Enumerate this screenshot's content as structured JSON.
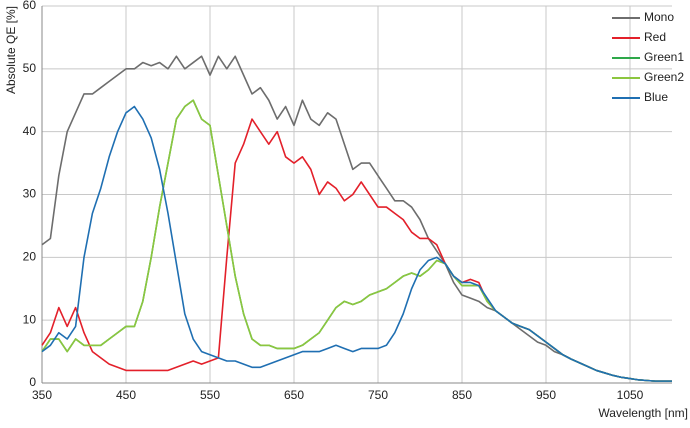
{
  "chart_data": {
    "type": "line",
    "x_label": "Wavelength [nm]",
    "y_label": "Absolute QE [%]",
    "x": [
      350,
      360,
      370,
      380,
      390,
      400,
      410,
      420,
      430,
      440,
      450,
      460,
      470,
      480,
      490,
      500,
      510,
      520,
      530,
      540,
      550,
      560,
      570,
      580,
      590,
      600,
      610,
      620,
      630,
      640,
      650,
      660,
      670,
      680,
      690,
      700,
      710,
      720,
      730,
      740,
      750,
      760,
      770,
      780,
      790,
      800,
      810,
      820,
      830,
      840,
      850,
      860,
      870,
      880,
      890,
      900,
      910,
      920,
      930,
      940,
      950,
      960,
      970,
      980,
      990,
      1000,
      1010,
      1020,
      1030,
      1040,
      1050,
      1060,
      1070,
      1080,
      1090,
      1100
    ],
    "series": [
      {
        "name": "Mono",
        "color": "#6d6d6d",
        "values": [
          22,
          23,
          33,
          40,
          43,
          46,
          46,
          47,
          48,
          49,
          50,
          50,
          51,
          50.5,
          51,
          50,
          52,
          50,
          51,
          52,
          49,
          52,
          50,
          52,
          49,
          46,
          47,
          45,
          42,
          44,
          41,
          45,
          42,
          41,
          43,
          42,
          38,
          34,
          35,
          35,
          33,
          31,
          29,
          29,
          28,
          26,
          23,
          21,
          19,
          16,
          14,
          13.5,
          13,
          12,
          11.5,
          10.5,
          9.5,
          8.5,
          7.5,
          6.5,
          6,
          5,
          4.5,
          3.8,
          3.2,
          2.6,
          2,
          1.6,
          1.2,
          0.9,
          0.7,
          0.5,
          0.4,
          0.3,
          0.3,
          0.3
        ]
      },
      {
        "name": "Red",
        "color": "#e3202a",
        "values": [
          6,
          8,
          12,
          9,
          12,
          8,
          5,
          4,
          3,
          2.5,
          2,
          2,
          2,
          2,
          2,
          2,
          2.5,
          3,
          3.5,
          3,
          3.5,
          4,
          20,
          35,
          38,
          42,
          40,
          38,
          40,
          36,
          35,
          36,
          34,
          30,
          32,
          31,
          29,
          30,
          32,
          30,
          28,
          28,
          27,
          26,
          24,
          23,
          23,
          22,
          19,
          17,
          16,
          16.5,
          16,
          13,
          11.5,
          10.5,
          9.5,
          9,
          8.5,
          7.5,
          6.5,
          5.5,
          4.5,
          3.8,
          3.2,
          2.6,
          2,
          1.6,
          1.2,
          0.9,
          0.7,
          0.5,
          0.4,
          0.3,
          0.3,
          0.3
        ]
      },
      {
        "name": "Green1",
        "color": "#2ea84a",
        "values": [
          5,
          7,
          7,
          5,
          7,
          6,
          6,
          6,
          7,
          8,
          9,
          9,
          13,
          20,
          28,
          35,
          42,
          44,
          45,
          42,
          41,
          33,
          25,
          17,
          11,
          7,
          6,
          6,
          5.5,
          5.5,
          5.5,
          6,
          7,
          8,
          10,
          12,
          13,
          12.5,
          13,
          14,
          14.5,
          15,
          16,
          17,
          17.5,
          17,
          18,
          19.5,
          19,
          17,
          15.5,
          15.5,
          15.5,
          13,
          11.5,
          10.5,
          9.5,
          9,
          8.5,
          7.5,
          6.5,
          5.5,
          4.5,
          3.8,
          3.2,
          2.6,
          2,
          1.6,
          1.2,
          0.9,
          0.7,
          0.5,
          0.4,
          0.3,
          0.3,
          0.3
        ]
      },
      {
        "name": "Green2",
        "color": "#8cc63f",
        "values": [
          5,
          7,
          7,
          5,
          7,
          6,
          6,
          6,
          7,
          8,
          9,
          9,
          13,
          20,
          28,
          35,
          42,
          44,
          45,
          42,
          41,
          33,
          25,
          17,
          11,
          7,
          6,
          6,
          5.5,
          5.5,
          5.5,
          6,
          7,
          8,
          10,
          12,
          13,
          12.5,
          13,
          14,
          14.5,
          15,
          16,
          17,
          17.5,
          17,
          18,
          19.5,
          19,
          17,
          15.5,
          15.5,
          15.5,
          13,
          11.5,
          10.5,
          9.5,
          9,
          8.5,
          7.5,
          6.5,
          5.5,
          4.5,
          3.8,
          3.2,
          2.6,
          2,
          1.6,
          1.2,
          0.9,
          0.7,
          0.5,
          0.4,
          0.3,
          0.3,
          0.3
        ]
      },
      {
        "name": "Blue",
        "color": "#1f6fb2",
        "values": [
          5,
          6,
          8,
          7,
          9,
          20,
          27,
          31,
          36,
          40,
          43,
          44,
          42,
          39,
          34,
          27,
          19,
          11,
          7,
          5,
          4.5,
          4,
          3.5,
          3.5,
          3,
          2.5,
          2.5,
          3,
          3.5,
          4,
          4.5,
          5,
          5,
          5,
          5.5,
          6,
          5.5,
          5,
          5.5,
          5.5,
          5.5,
          6,
          8,
          11,
          15,
          18,
          19.5,
          20,
          19,
          17,
          16,
          16,
          15.5,
          13.5,
          11.5,
          10.5,
          9.5,
          9,
          8.5,
          7.5,
          6.5,
          5.5,
          4.5,
          3.8,
          3.2,
          2.6,
          2,
          1.6,
          1.2,
          0.9,
          0.7,
          0.5,
          0.4,
          0.3,
          0.3,
          0.3
        ]
      }
    ],
    "xlim": [
      350,
      1100
    ],
    "xticks": [
      350,
      450,
      550,
      650,
      750,
      850,
      950,
      1050
    ],
    "ylim": [
      0,
      60
    ],
    "yticks": [
      0,
      10,
      20,
      30,
      40,
      50,
      60
    ],
    "grid": true,
    "legend": "top-right"
  }
}
